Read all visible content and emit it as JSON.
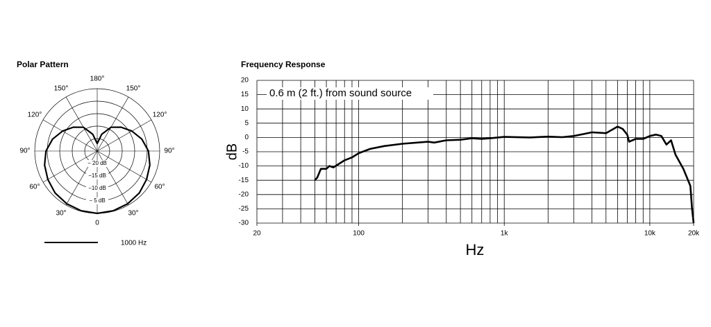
{
  "chart_data": [
    {
      "type": "polar",
      "title": "Polar Pattern",
      "rlim": [
        -25,
        0
      ],
      "rticks": [
        {
          "value": -20,
          "label": "− 20 dB"
        },
        {
          "value": -15,
          "label": "−15 dB"
        },
        {
          "value": -10,
          "label": "−10 dB"
        },
        {
          "value": -5,
          "label": "− 5 dB"
        },
        {
          "value": 0,
          "label": ""
        }
      ],
      "angle_ticks": [
        {
          "value": 0,
          "label": "0"
        },
        {
          "value": 30,
          "label": "30°"
        },
        {
          "value": 60,
          "label": "60°"
        },
        {
          "value": 90,
          "label": "90°"
        },
        {
          "value": 120,
          "label": "120°"
        },
        {
          "value": 150,
          "label": "150°"
        },
        {
          "value": 180,
          "label": "180°"
        },
        {
          "value": 210,
          "label": "150°"
        },
        {
          "value": 240,
          "label": "120°"
        },
        {
          "value": 270,
          "label": "90°"
        },
        {
          "value": 300,
          "label": "60°"
        },
        {
          "value": 330,
          "label": "30°"
        }
      ],
      "series": [
        {
          "name": "1000 Hz",
          "color": "#000000",
          "angles": [
            0,
            15,
            30,
            45,
            60,
            75,
            90,
            105,
            120,
            135,
            150,
            165,
            180,
            195,
            210,
            225,
            240,
            255,
            270,
            285,
            300,
            315,
            330,
            345,
            360
          ],
          "values": [
            0,
            -0.2,
            -0.6,
            -1.2,
            -2.2,
            -3.2,
            -4.5,
            -6.5,
            -9,
            -11.5,
            -14,
            -18,
            -22,
            -18,
            -14,
            -11.5,
            -9,
            -6.5,
            -4.5,
            -3.2,
            -2.2,
            -1.2,
            -0.6,
            -0.2,
            0
          ]
        }
      ]
    },
    {
      "type": "line",
      "title": "Frequency Response",
      "x_label": "Hz",
      "y_label": "dB",
      "annotation": "0.6 m (2 ft.) from sound source",
      "xscale": "log",
      "xlim": [
        20,
        20000
      ],
      "ylim": [
        -30,
        20
      ],
      "xticks": [
        20,
        100,
        {
          "value": 1000,
          "label": "1k"
        },
        {
          "value": 10000,
          "label": "10k"
        },
        {
          "value": 20000,
          "label": "20k"
        }
      ],
      "xgrid": [
        30,
        40,
        50,
        60,
        70,
        80,
        90,
        200,
        300,
        400,
        500,
        600,
        700,
        800,
        900,
        2000,
        3000,
        4000,
        5000,
        6000,
        7000,
        8000,
        9000
      ],
      "yticks": [
        -30,
        -25,
        -20,
        -15,
        -10,
        -5,
        0,
        5,
        10,
        15,
        20
      ],
      "grid": true,
      "series": [
        {
          "name": "response",
          "color": "#000000",
          "x": [
            50,
            52,
            55,
            60,
            63,
            67,
            72,
            80,
            90,
            100,
            120,
            150,
            200,
            300,
            330,
            400,
            500,
            600,
            700,
            800,
            1000,
            1500,
            2000,
            2500,
            3000,
            3500,
            4000,
            5000,
            6000,
            6500,
            7000,
            7200,
            8000,
            9000,
            10000,
            11000,
            12000,
            13000,
            14000,
            15000,
            17000,
            19000,
            19500,
            20000
          ],
          "values": [
            -15,
            -14,
            -11,
            -11,
            -10,
            -10.5,
            -9.5,
            -8,
            -7,
            -5.5,
            -4,
            -3,
            -2.2,
            -1.5,
            -1.8,
            -1,
            -0.8,
            -0.3,
            -0.5,
            -0.3,
            0.2,
            0,
            0.3,
            0.1,
            0.5,
            1.2,
            1.8,
            1.5,
            3.8,
            3,
            1,
            -1.5,
            -0.5,
            -0.5,
            0.5,
            1,
            0.5,
            -2.5,
            -1,
            -6,
            -11,
            -17,
            -25,
            -30
          ]
        }
      ]
    }
  ]
}
